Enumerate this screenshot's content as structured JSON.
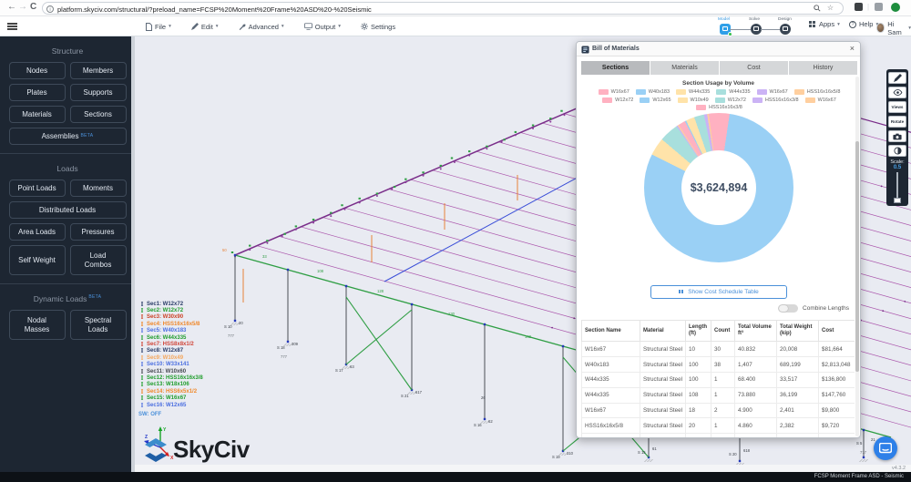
{
  "appearance": {
    "accent_blue": "#4a90d9",
    "sidebar_bg": "#1d2632",
    "viewport_bg": "#e9ebf2",
    "status_bar_bg": "#0d1116",
    "donut_color_cycle": [
      "#FFB1C1",
      "#9AD0F5",
      "#FFE3A9",
      "#A8DFDD",
      "#CBB3F5",
      "#FFCF9F"
    ]
  },
  "browser": {
    "url": "platform.skyciv.com/structural/?preload_name=FCSP%20Moment%20Frame%20ASD%20-%20Seismic",
    "info_glyph": "i"
  },
  "menubar": {
    "items": [
      {
        "label": "File",
        "icon": "file",
        "chevron": true
      },
      {
        "label": "Edit",
        "icon": "edit",
        "chevron": true
      },
      {
        "label": "Advanced",
        "icon": "advanced",
        "chevron": true
      },
      {
        "label": "Output",
        "icon": "output",
        "chevron": true
      },
      {
        "label": "Settings",
        "icon": "settings",
        "chevron": false
      }
    ]
  },
  "stepper": {
    "steps": [
      {
        "label": "Model",
        "active": true
      },
      {
        "label": "Solve",
        "active": false
      },
      {
        "label": "Design",
        "active": false
      }
    ]
  },
  "topbar_right": {
    "apps_label": "Apps",
    "help_label": "Help",
    "user_label": "Hi Sam"
  },
  "sidebar": {
    "groups": [
      {
        "title": "Structure",
        "badge": "",
        "buttons": [
          {
            "label": "Nodes"
          },
          {
            "label": "Members"
          },
          {
            "label": "Plates"
          },
          {
            "label": "Supports"
          },
          {
            "label": "Materials"
          },
          {
            "label": "Sections"
          },
          {
            "label": "Assemblies",
            "wide": true,
            "badge": "BETA"
          }
        ]
      },
      {
        "title": "Loads",
        "badge": "",
        "buttons": [
          {
            "label": "Point Loads"
          },
          {
            "label": "Moments"
          },
          {
            "label": "Distributed Loads",
            "wide": true
          },
          {
            "label": "Area Loads"
          },
          {
            "label": "Pressures"
          },
          {
            "label": "Self Weight",
            "tall": true
          },
          {
            "label": "Load Combos",
            "tall": true
          }
        ]
      },
      {
        "title": "Dynamic Loads",
        "badge": "BETA",
        "buttons": [
          {
            "label": "Nodal Masses",
            "tall": true
          },
          {
            "label": "Spectral Loads",
            "tall": true
          }
        ]
      }
    ]
  },
  "viewport": {
    "section_legend": [
      {
        "id": "Sec1:",
        "name": "W12x72",
        "color": "#273a66"
      },
      {
        "id": "Sec2:",
        "name": "W12x72",
        "color": "#1f9d2c"
      },
      {
        "id": "Sec3:",
        "name": "W30x90",
        "color": "#cc4125"
      },
      {
        "id": "Sec4:",
        "name": "HSS16x16x5/8",
        "color": "#f0882a"
      },
      {
        "id": "Sec5:",
        "name": "W40x183",
        "color": "#4a6ee0"
      },
      {
        "id": "Sec6:",
        "name": "W44x335",
        "color": "#1f9d2c"
      },
      {
        "id": "Sec7:",
        "name": "HSS8x8x1/2",
        "color": "#d04437"
      },
      {
        "id": "Sec8:",
        "name": "W12x87",
        "color": "#273a66"
      },
      {
        "id": "Sec9:",
        "name": "W10x49",
        "color": "#f5a65b"
      },
      {
        "id": "Sec10:",
        "name": "W33x141",
        "color": "#4a6ee0"
      },
      {
        "id": "Sec11:",
        "name": "W10x60",
        "color": "#44484f"
      },
      {
        "id": "Sec12:",
        "name": "HSS16x16x3/8",
        "color": "#1f9d2c"
      },
      {
        "id": "Sec13:",
        "name": "W18x106",
        "color": "#1f9d2c"
      },
      {
        "id": "Sec14:",
        "name": "HSS6x5x1/2",
        "color": "#f0882a"
      },
      {
        "id": "Sec15:",
        "name": "W16x67",
        "color": "#1f9d2c"
      },
      {
        "id": "Sec16:",
        "name": "W12x65",
        "color": "#4a6ee0"
      }
    ],
    "sw_label": "SW: OFF",
    "axis": {
      "x": "X",
      "y": "Y",
      "z": "Z"
    },
    "logo_text": "SkyCiv",
    "version": "v4.3.2",
    "model_labels": [
      {
        "t": "50",
        "c": "#e8833a"
      },
      {
        "t": "33",
        "c": "#2f9e44"
      },
      {
        "t": "S 10",
        "c": "#3a3f46"
      },
      {
        "t": "20",
        "c": "#3a3f46"
      },
      {
        "t": "777",
        "c": "#6a7076"
      },
      {
        "t": "S 18",
        "c": "#3a3f46"
      },
      {
        "t": "309",
        "c": "#3a3f46"
      },
      {
        "t": "777",
        "c": "#6a7076"
      },
      {
        "t": "108",
        "c": "#2f9e44"
      },
      {
        "t": "S 17",
        "c": "#3a3f46"
      },
      {
        "t": "63",
        "c": "#3a3f46"
      },
      {
        "t": "128",
        "c": "#2f9e44"
      },
      {
        "t": "S 21",
        "c": "#3a3f46"
      },
      {
        "t": "617",
        "c": "#3a3f46"
      },
      {
        "t": "130",
        "c": "#2f9e44"
      },
      {
        "t": "S 16",
        "c": "#3a3f46"
      },
      {
        "t": "62",
        "c": "#3a3f46"
      },
      {
        "t": "148",
        "c": "#2f9e44"
      },
      {
        "t": "S 19",
        "c": "#3a3f46"
      },
      {
        "t": "310",
        "c": "#3a3f46"
      },
      {
        "t": "21",
        "c": "#2f9e44"
      },
      {
        "t": "S 15",
        "c": "#3a3f46"
      },
      {
        "t": "61",
        "c": "#3a3f46"
      },
      {
        "t": "107",
        "c": "#2f9e44"
      },
      {
        "t": "194",
        "c": "#2f9e44"
      },
      {
        "t": "S 20",
        "c": "#3a3f46"
      },
      {
        "t": "618",
        "c": "#3a3f46"
      },
      {
        "t": "26",
        "c": "#3a3f46"
      },
      {
        "t": "S 5",
        "c": "#3a3f46"
      },
      {
        "t": "21",
        "c": "#3a3f46"
      },
      {
        "t": "777",
        "c": "#6a7076"
      }
    ]
  },
  "right_toolbar": {
    "views_label": "Views",
    "rotate_label": "Rotate",
    "scale_label": "Scale:",
    "scale_value": "0.5"
  },
  "bom": {
    "title": "Bill of Materials",
    "close_glyph": "×",
    "tabs": [
      {
        "label": "Sections",
        "active": true
      },
      {
        "label": "Materials",
        "active": false
      },
      {
        "label": "Cost",
        "active": false
      },
      {
        "label": "History",
        "active": false
      }
    ],
    "chart_title": "Section Usage by Volume",
    "center_total": "$3,624,894",
    "show_cost_button": "Show Cost Schedule Table",
    "combine_lengths_label": "Combine Lengths",
    "table": {
      "headers": [
        "Section Name",
        "Material",
        "Length (ft)",
        "Count",
        "Total Volume ft³",
        "Total Weight (kip)",
        "Cost"
      ],
      "rows": [
        [
          "W16x67",
          "Structural Steel",
          "10",
          "30",
          "40.832",
          "20,008",
          "$81,664"
        ],
        [
          "W40x183",
          "Structural Steel",
          "100",
          "38",
          "1,407",
          "689,199",
          "$2,813,048"
        ],
        [
          "W44x335",
          "Structural Steel",
          "100",
          "1",
          "68.400",
          "33,517",
          "$136,800"
        ],
        [
          "W44x335",
          "Structural Steel",
          "108",
          "1",
          "73.880",
          "36,199",
          "$147,760"
        ],
        [
          "W16x67",
          "Structural Steel",
          "18",
          "2",
          "4.900",
          "2,401",
          "$9,800"
        ],
        [
          "HSS16x16x5/8",
          "Structural Steel",
          "20",
          "1",
          "4.860",
          "2,382",
          "$9,720"
        ],
        [
          "W12x72",
          "Structural Steel",
          "23",
          "8",
          "26.961",
          "13,211",
          "$53,922"
        ]
      ]
    }
  },
  "chart_data": {
    "type": "pie",
    "subtype": "doughnut",
    "title": "Section Usage by Volume",
    "center_label": "$3,624,894",
    "legend_position": "top",
    "labels": [
      "W16x67",
      "W40x183",
      "W44x335",
      "W44x335",
      "W16x67",
      "HSS16x16x5/8",
      "W12x72",
      "W12x65",
      "W10x49",
      "W12x72",
      "HSS16x16x3/8",
      "W16x67",
      "HSS16x16x3/8"
    ],
    "values": [
      40.832,
      1407,
      68.4,
      73.88,
      4.9,
      4.86,
      26.961,
      5,
      33,
      38,
      12,
      6,
      38
    ],
    "colors": [
      "#FFB1C1",
      "#9AD0F5",
      "#FFE3A9",
      "#A8DFDD",
      "#CBB3F5",
      "#FFCF9F",
      "#FFB1C1",
      "#9AD0F5",
      "#FFE3A9",
      "#A8DFDD",
      "#CBB3F5",
      "#FFCF9F",
      "#FFB1C1"
    ]
  },
  "statusbar": {
    "text": "FCSP Moment Frame ASD - Seismic"
  }
}
